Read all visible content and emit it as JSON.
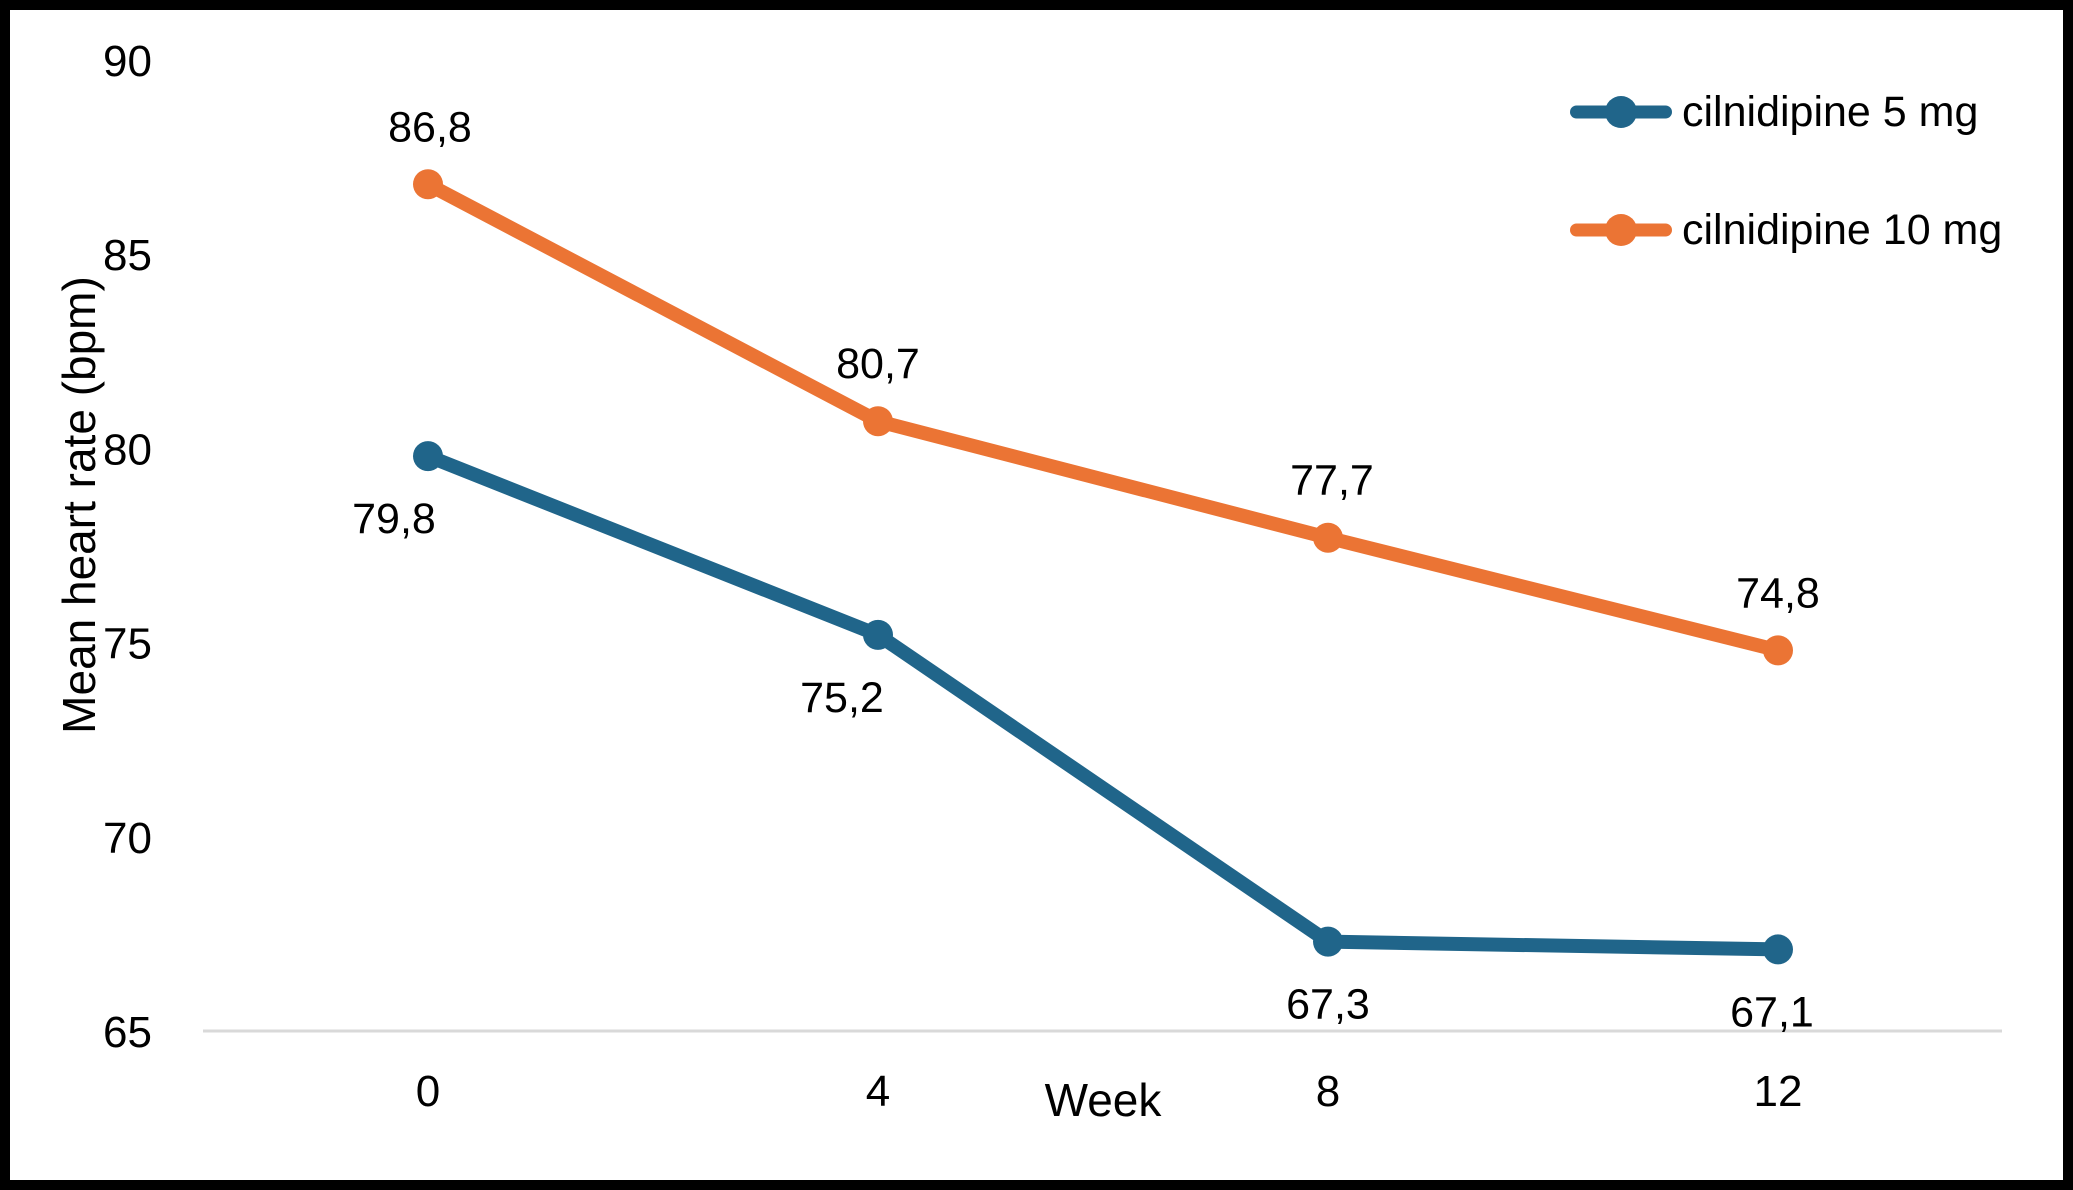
{
  "colors": {
    "background": "#FFFFFF",
    "frame_border": "#000000",
    "gridline": "#D9D9D9",
    "text": "#000000",
    "series_blue": "#20658A",
    "series_orange": "#EB7434"
  },
  "chart_data": {
    "type": "line",
    "title": "",
    "xlabel": "Week",
    "ylabel": "Mean heart rate (bpm)",
    "x": [
      0,
      4,
      8,
      12
    ],
    "xtick_labels": [
      "0",
      "4",
      "8",
      "12"
    ],
    "ylim": [
      65,
      90
    ],
    "yticks": [
      90,
      85,
      80,
      75,
      70,
      65
    ],
    "ytick_labels": [
      "90",
      "85",
      "80",
      "75",
      "70",
      "65"
    ],
    "gridline_values": [
      65
    ],
    "grid": "single light horizontal line at y=65 only",
    "legend_position": "top-right",
    "decimal_separator": ",",
    "series": [
      {
        "name": "cilnidipine 5 mg",
        "color": "#20658A",
        "values": [
          79.8,
          75.2,
          67.3,
          67.1
        ],
        "labels": [
          "79,8",
          "75,2",
          "67,3",
          "67,1"
        ],
        "label_side": "below",
        "label_dx": [
          -34,
          -36,
          0,
          -6
        ]
      },
      {
        "name": "cilnidipine 10 mg",
        "color": "#EB7434",
        "values": [
          86.8,
          80.7,
          77.7,
          74.8
        ],
        "labels": [
          "86,8",
          "80,7",
          "77,7",
          "74,8"
        ],
        "label_side": "above",
        "label_dx": [
          2,
          0,
          4,
          0
        ]
      }
    ]
  }
}
